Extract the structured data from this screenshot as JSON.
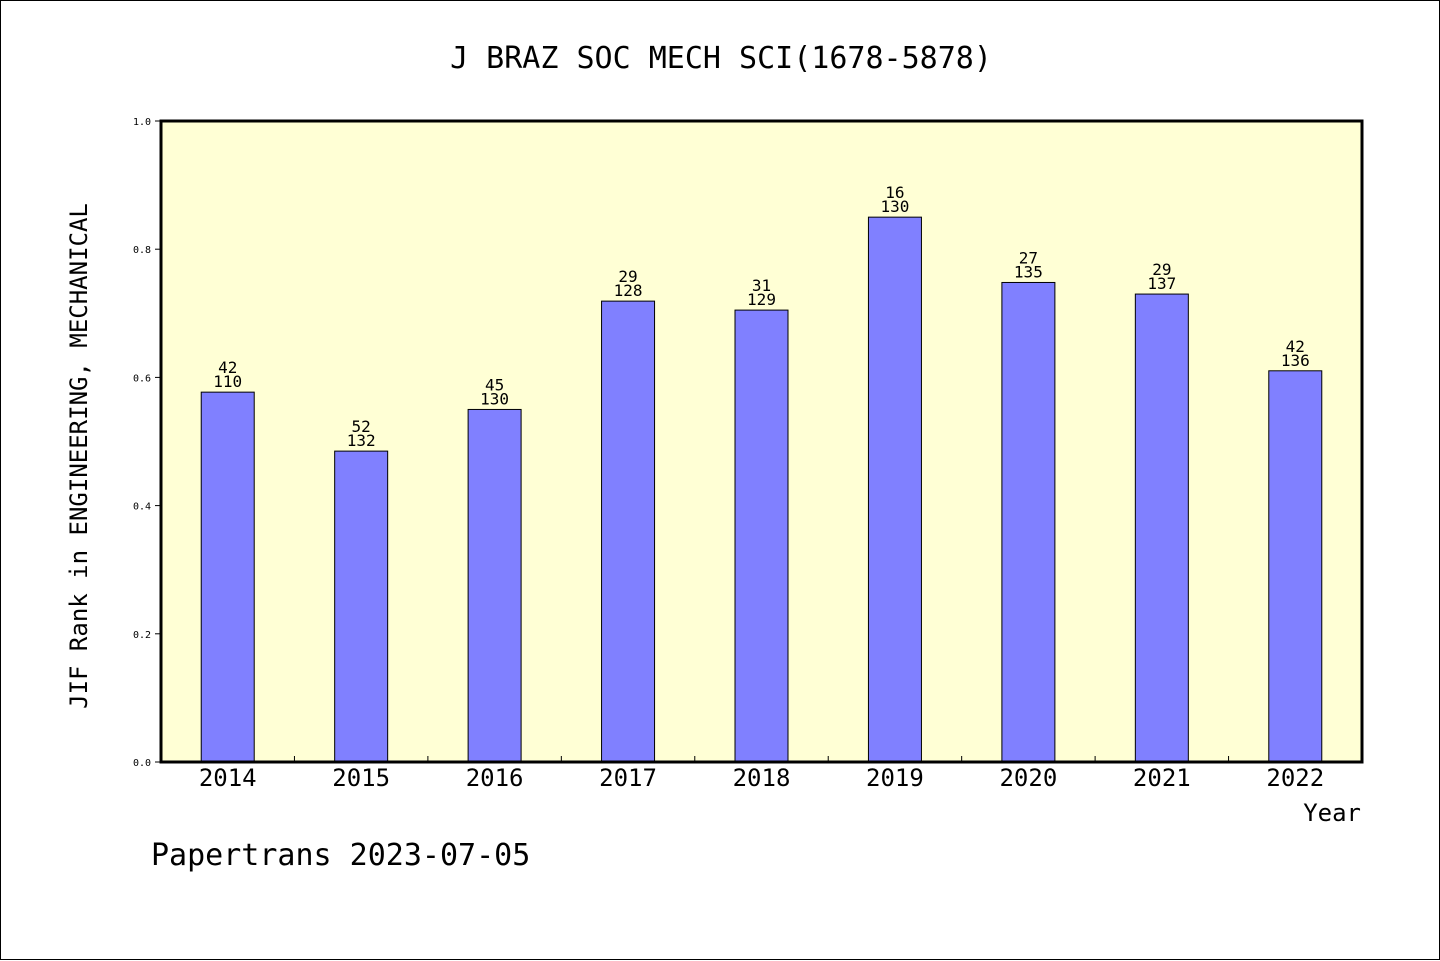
{
  "chart_data": {
    "type": "bar",
    "title": "J BRAZ SOC MECH SCI(1678-5878)",
    "xlabel": "Year",
    "ylabel": "JIF Rank in ENGINEERING, MECHANICAL",
    "ylim": [
      0,
      1.0
    ],
    "yticks": [
      "0.0",
      "0.2",
      "0.4",
      "0.6",
      "0.8",
      "1.0"
    ],
    "categories": [
      "2014",
      "2015",
      "2016",
      "2017",
      "2018",
      "2019",
      "2020",
      "2021",
      "2022"
    ],
    "values": [
      0.577,
      0.485,
      0.55,
      0.719,
      0.705,
      0.85,
      0.7481,
      0.73,
      0.6103
    ],
    "rank": [
      "42",
      "52",
      "45",
      "29",
      "31",
      "16",
      "27",
      "29",
      "42"
    ],
    "total": [
      "110",
      "132",
      "130",
      "128",
      "129",
      "130",
      "135",
      "137",
      "136"
    ],
    "grid": false,
    "plot_background": "#ffffd5",
    "bar_color": "#8080ff",
    "footer": "Papertrans 2023-07-05"
  }
}
